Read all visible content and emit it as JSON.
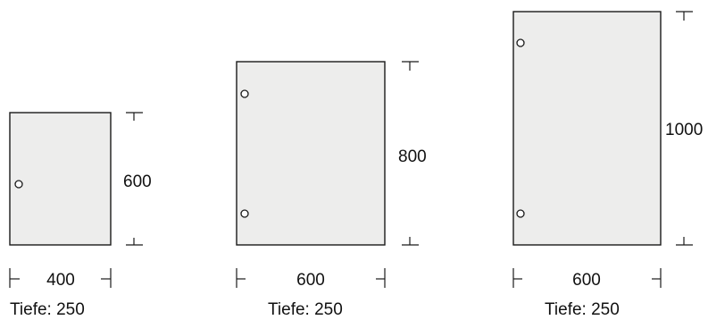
{
  "cabinets": [
    {
      "width": "400",
      "height": "600",
      "depth": "Tiefe: 250",
      "hinges": 1
    },
    {
      "width": "600",
      "height": "800",
      "depth": "Tiefe: 250",
      "hinges": 2
    },
    {
      "width": "600",
      "height": "1000",
      "depth": "Tiefe: 250",
      "hinges": 2
    }
  ]
}
